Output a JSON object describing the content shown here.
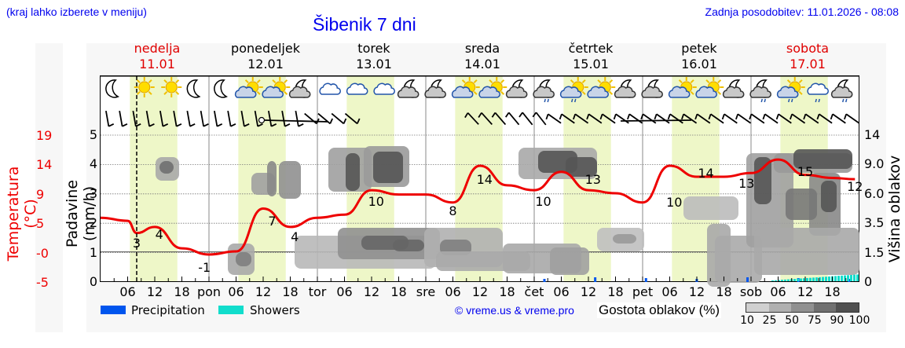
{
  "header": {
    "hint": "(kraj lahko izberete v meniju)",
    "title": "Šibenik 7 dni",
    "updated": "Zadnja posodobitev: 11.01.2026 - 08:08"
  },
  "days": [
    {
      "name": "nedelja",
      "date": "11.01",
      "weekend": true
    },
    {
      "name": "ponedeljek",
      "date": "12.01",
      "weekend": false
    },
    {
      "name": "torek",
      "date": "13.01",
      "weekend": false
    },
    {
      "name": "sreda",
      "date": "14.01",
      "weekend": false
    },
    {
      "name": "četrtek",
      "date": "15.01",
      "weekend": false
    },
    {
      "name": "petek",
      "date": "16.01",
      "weekend": false
    },
    {
      "name": "sobota",
      "date": "17.01",
      "weekend": true
    }
  ],
  "axes": {
    "temp_label": "Temperatura (°C)",
    "temp_ticks": [
      "19",
      "14",
      "9",
      "5",
      "-0",
      "-5"
    ],
    "precip_label": "Padavine (mm/h)",
    "precip_ticks": [
      "5",
      "4",
      "3",
      "2",
      "1",
      "0"
    ],
    "cloud_label": "Višina oblakov (km)",
    "cloud_ticks": [
      "14",
      "9.0",
      "6.0",
      "3.5",
      "1.5",
      "0"
    ],
    "x_ticks": [
      "06",
      "12",
      "18",
      "pon",
      "06",
      "12",
      "18",
      "tor",
      "06",
      "12",
      "18",
      "sre",
      "06",
      "12",
      "18",
      "čet",
      "06",
      "12",
      "18",
      "pet",
      "06",
      "12",
      "18",
      "sob",
      "06",
      "12",
      "18"
    ]
  },
  "legend": {
    "precipitation": "Precipitation",
    "showers": "Showers",
    "precipitation_color": "#0055ee",
    "showers_color": "#11ddcc",
    "copyright": "© vreme.us & vreme.pro",
    "density_title": "Gostota oblakov (%)",
    "density_ticks": [
      "10",
      "25",
      "50",
      "75",
      "90",
      "100"
    ],
    "density_colors": [
      "#d0d0d0",
      "#b0b0b0",
      "#909090",
      "#707070",
      "#505050"
    ]
  },
  "colors": {
    "temperature_line": "#ee0000",
    "daylight": "#eef7c8",
    "link_blue": "#0000ee"
  },
  "weather_icons": [
    "moon",
    "sun",
    "sun",
    "moon",
    "moon",
    "sun-cloud",
    "sun-cloud",
    "moon-cloud",
    "cloud",
    "cloud",
    "cloud",
    "moon-cloud",
    "moon-cloud",
    "sun-cloud",
    "sun-cloud",
    "moon-cloud",
    "moon-cloud-rain",
    "sun-cloud-rain",
    "sun-cloud",
    "moon-cloud",
    "moon-cloud",
    "sun-cloud",
    "sun-cloud",
    "moon-cloud",
    "moon-cloud-rain",
    "sun-cloud-rain",
    "cloud-rain",
    "moon-cloud-rain"
  ],
  "chart_data": {
    "type": "line",
    "title": "Šibenik 7 dni",
    "xlabel": "",
    "ylabel": "Temperatura (°C)",
    "x_hours_from_start": [
      0,
      6,
      8,
      12,
      18,
      24,
      30,
      36,
      42,
      48,
      54,
      60,
      66,
      72,
      78,
      84,
      90,
      96,
      102,
      108,
      114,
      120,
      126,
      132,
      138,
      144,
      150,
      156,
      162,
      167
    ],
    "series": [
      {
        "name": "Temperatura (°C)",
        "values": [
          5.5,
          5,
          3,
          4,
          0.5,
          -0.5,
          0,
          7,
          4,
          5.5,
          6,
          10,
          9.3,
          9.3,
          8,
          14,
          10.8,
          10,
          13,
          10,
          9.5,
          8,
          14,
          12.2,
          12.2,
          12.8,
          15,
          12.5,
          12,
          11.8
        ]
      }
    ],
    "annotations": [
      {
        "label": "3",
        "hour": 8
      },
      {
        "label": "4",
        "hour": 13
      },
      {
        "label": "-1",
        "hour": 23
      },
      {
        "label": "7",
        "hour": 38
      },
      {
        "label": "4",
        "hour": 43
      },
      {
        "label": "10",
        "hour": 61
      },
      {
        "label": "8",
        "hour": 78
      },
      {
        "label": "14",
        "hour": 85
      },
      {
        "label": "10",
        "hour": 98
      },
      {
        "label": "13",
        "hour": 109
      },
      {
        "label": "10",
        "hour": 127
      },
      {
        "label": "14",
        "hour": 134
      },
      {
        "label": "13",
        "hour": 143
      },
      {
        "label": "15",
        "hour": 156
      },
      {
        "label": "12",
        "hour": 167
      }
    ],
    "precip_ylim": [
      0,
      5
    ],
    "temp_ylim": [
      -5,
      19
    ],
    "cloud_height_ticks_km": [
      0,
      1.5,
      3.5,
      6.0,
      9.0,
      14
    ],
    "precipitation_bars": [
      {
        "day": "čet",
        "hours": "00-12",
        "max_mm_h": 0.05,
        "type": "Precipitation"
      },
      {
        "day": "sob",
        "hours": "00-24",
        "max_mm_h": 0.1,
        "type": "Showers"
      }
    ],
    "grid": true,
    "current_time_marker_hour": 8
  }
}
